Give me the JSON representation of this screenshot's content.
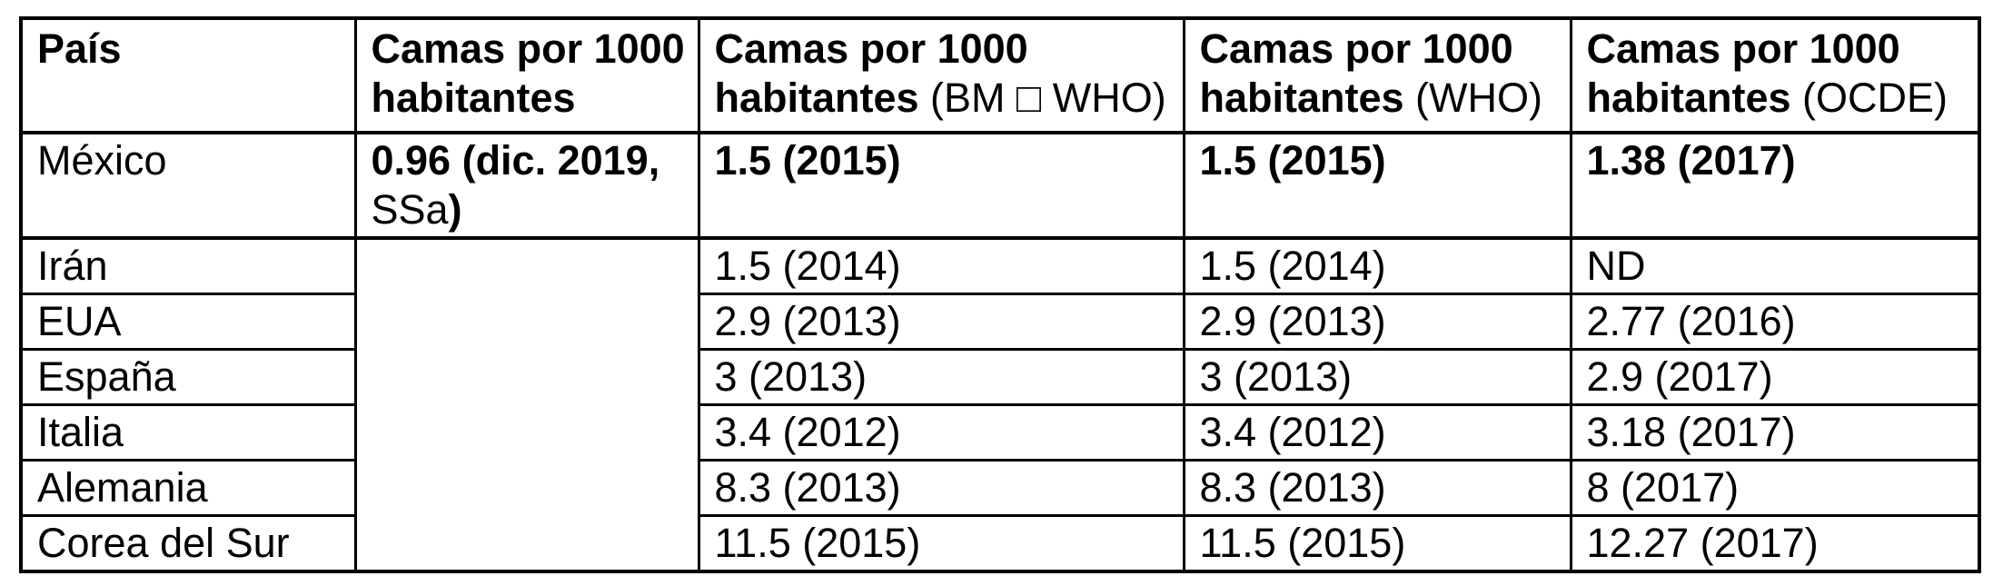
{
  "page": {
    "background": "#ffffff",
    "border_color": "#000000",
    "text_color": "#000000"
  },
  "table": {
    "columns": [
      {
        "line1": "País",
        "line2_bold": "",
        "line2_regular": ""
      },
      {
        "line1": "Camas por 1000",
        "line2_bold": "habitantes",
        "line2_regular": ""
      },
      {
        "line1": "Camas por 1000",
        "line2_bold": "habitantes",
        "line2_regular": " (BM □ WHO)"
      },
      {
        "line1": "Camas por 1000",
        "line2_bold": "habitantes",
        "line2_regular": " (WHO)"
      },
      {
        "line1": "Camas por 1000",
        "line2_bold": "habitantes",
        "line2_regular": " (OCDE)"
      }
    ],
    "merged_empty_cell": {
      "rowspan": 6,
      "content": ""
    },
    "rows": [
      {
        "pais": "México",
        "values_bold": true,
        "camas_nacional_runs": [
          {
            "text": "0.96 (dic. 2019, ",
            "bold": true
          },
          {
            "text": "SSa",
            "bold": false
          },
          {
            "text": ")",
            "bold": true
          }
        ],
        "camas_bm_who": "1.5 (2015)",
        "camas_who": "1.5 (2015)",
        "camas_ocde": "1.38 (2017)"
      },
      {
        "pais": "Irán",
        "camas_bm_who": "1.5 (2014)",
        "camas_who": "1.5 (2014)",
        "camas_ocde": "ND"
      },
      {
        "pais": "EUA",
        "camas_bm_who": "2.9 (2013)",
        "camas_who": "2.9 (2013)",
        "camas_ocde": "2.77 (2016)"
      },
      {
        "pais": "España",
        "camas_bm_who": "3 (2013)",
        "camas_who": "3 (2013)",
        "camas_ocde": "2.9 (2017)"
      },
      {
        "pais": "Italia",
        "camas_bm_who": "3.4 (2012)",
        "camas_who": "3.4 (2012)",
        "camas_ocde": "3.18 (2017)"
      },
      {
        "pais": "Alemania",
        "camas_bm_who": "8.3 (2013)",
        "camas_who": "8.3 (2013)",
        "camas_ocde": "8 (2017)"
      },
      {
        "pais": "Corea del Sur",
        "camas_bm_who": "11.5 (2015)",
        "camas_who": "11.5 (2015)",
        "camas_ocde": "12.27 (2017)"
      }
    ]
  }
}
